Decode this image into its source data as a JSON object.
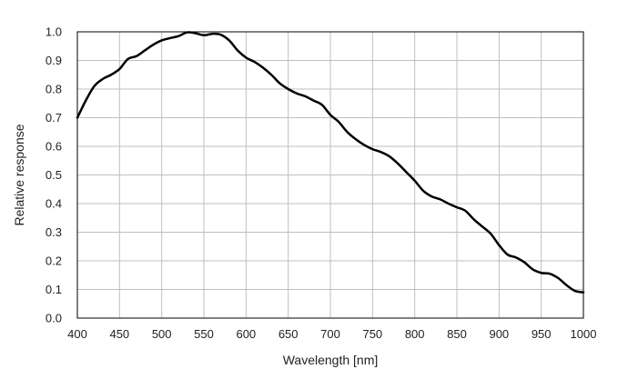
{
  "chart_data": {
    "type": "line",
    "title": "",
    "xlabel": "Wavelength [nm]",
    "ylabel": "Relative response",
    "xlim": [
      400,
      1000
    ],
    "ylim": [
      0.0,
      1.0
    ],
    "xticks": [
      400,
      450,
      500,
      550,
      600,
      650,
      700,
      750,
      800,
      850,
      900,
      950,
      1000
    ],
    "yticks": [
      0.0,
      0.1,
      0.2,
      0.3,
      0.4,
      0.5,
      0.6,
      0.7,
      0.8,
      0.9,
      1.0
    ],
    "xtick_labels": [
      "400",
      "450",
      "500",
      "550",
      "600",
      "650",
      "700",
      "750",
      "800",
      "850",
      "900",
      "950",
      "1000"
    ],
    "ytick_labels": [
      "0.0",
      "0.1",
      "0.2",
      "0.3",
      "0.4",
      "0.5",
      "0.6",
      "0.7",
      "0.8",
      "0.9",
      "1.0"
    ],
    "grid": true,
    "legend": "none",
    "line_color": "#000000",
    "grid_color": "#bfbfbf",
    "series": [
      {
        "x": [
          400,
          410,
          420,
          430,
          440,
          450,
          460,
          470,
          480,
          490,
          500,
          510,
          520,
          530,
          540,
          550,
          560,
          570,
          580,
          590,
          600,
          610,
          620,
          630,
          640,
          650,
          660,
          670,
          680,
          690,
          700,
          710,
          720,
          730,
          740,
          750,
          760,
          770,
          780,
          790,
          800,
          810,
          820,
          830,
          840,
          850,
          860,
          870,
          880,
          890,
          900,
          910,
          920,
          930,
          940,
          950,
          960,
          970,
          980,
          990,
          1000
        ],
        "y": [
          0.7,
          0.76,
          0.81,
          0.835,
          0.85,
          0.87,
          0.905,
          0.915,
          0.935,
          0.955,
          0.97,
          0.978,
          0.985,
          0.998,
          0.995,
          0.988,
          0.993,
          0.99,
          0.97,
          0.935,
          0.91,
          0.895,
          0.875,
          0.85,
          0.82,
          0.8,
          0.785,
          0.775,
          0.76,
          0.745,
          0.71,
          0.685,
          0.65,
          0.625,
          0.605,
          0.59,
          0.58,
          0.565,
          0.54,
          0.51,
          0.48,
          0.445,
          0.425,
          0.415,
          0.4,
          0.387,
          0.375,
          0.345,
          0.32,
          0.295,
          0.255,
          0.222,
          0.212,
          0.195,
          0.17,
          0.158,
          0.155,
          0.14,
          0.115,
          0.095,
          0.09
        ]
      }
    ]
  }
}
